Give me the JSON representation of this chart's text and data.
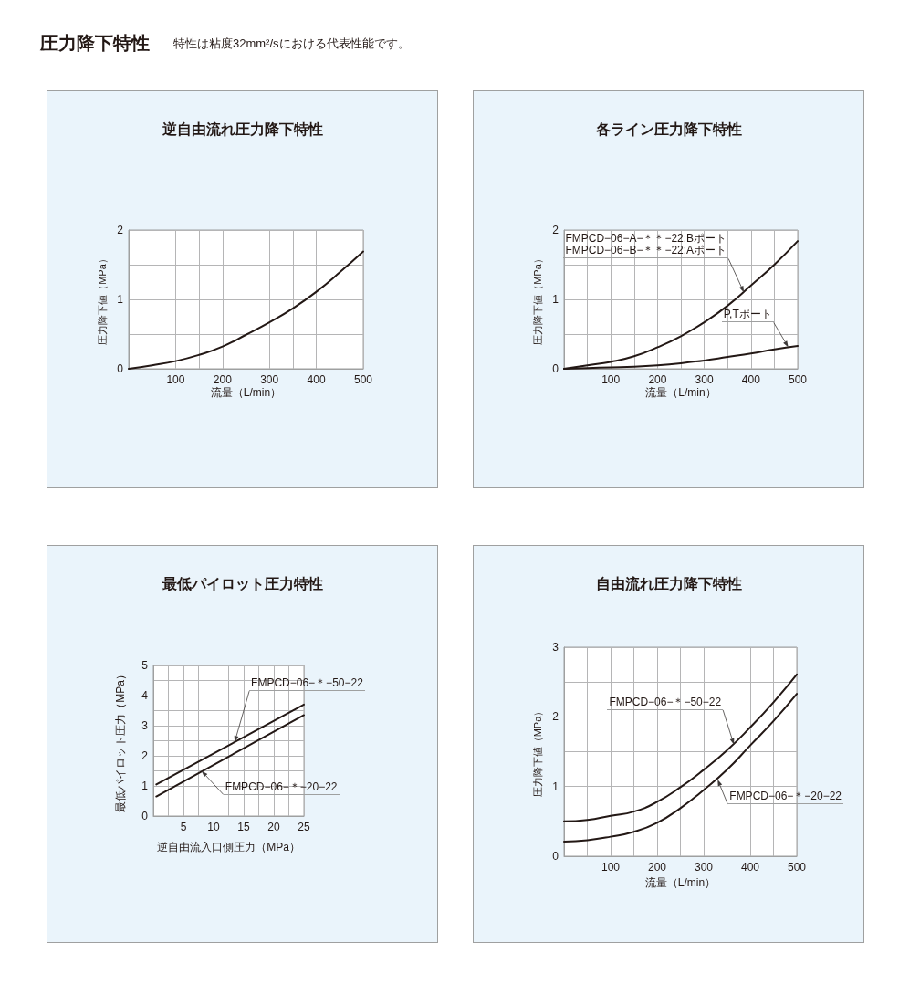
{
  "chart_data": [
    {
      "type": "other",
      "title": "圧力降下特性",
      "subtitle": "特性は粘度32mm²/sにおける代表性能です。"
    },
    {
      "type": "line",
      "title": "逆自由流れ圧力降下特性",
      "xlabel": "流量（L/min）",
      "ylabel": "圧力降下値（MPa）",
      "x": [
        0,
        50,
        100,
        150,
        200,
        250,
        300,
        350,
        400,
        450,
        500
      ],
      "series": [
        {
          "color": "#231815",
          "values": [
            0,
            0.05,
            0.11,
            0.2,
            0.32,
            0.49,
            0.67,
            0.87,
            1.11,
            1.39,
            1.69
          ]
        }
      ],
      "xlim": [
        0,
        500
      ],
      "ylim": [
        0,
        2
      ],
      "xticks": [
        {
          "value": 0,
          "label": null
        },
        {
          "value": 50,
          "label": null
        },
        100,
        {
          "value": 150,
          "label": null
        },
        200,
        {
          "value": 250,
          "label": null
        },
        300,
        {
          "value": 350,
          "label": null
        },
        400,
        {
          "value": 450,
          "label": null
        },
        500
      ],
      "yticks": [
        0,
        {
          "value": 0.5,
          "label": null
        },
        1,
        {
          "value": 1.5,
          "label": null
        },
        2
      ],
      "grid": true,
      "marker": "none"
    },
    {
      "type": "line",
      "title": "各ライン圧力降下特性",
      "xlabel": "流量（L/min）",
      "ylabel": "圧力降下値（MPa）",
      "x": [
        0,
        50,
        100,
        150,
        200,
        250,
        300,
        350,
        400,
        450,
        500
      ],
      "series": [
        {
          "color": "#231815",
          "values": [
            0,
            0.05,
            0.1,
            0.18,
            0.31,
            0.47,
            0.67,
            0.91,
            1.2,
            1.5,
            1.84
          ]
        },
        {
          "color": "#231815",
          "values": [
            0,
            0.01,
            0.02,
            0.03,
            0.05,
            0.08,
            0.12,
            0.17,
            0.22,
            0.28,
            0.33
          ]
        }
      ],
      "xlim": [
        0,
        500
      ],
      "ylim": [
        0,
        2
      ],
      "xticks": [
        {
          "value": 0,
          "label": null
        },
        {
          "value": 50,
          "label": null
        },
        100,
        {
          "value": 150,
          "label": null
        },
        200,
        {
          "value": 250,
          "label": null
        },
        300,
        {
          "value": 350,
          "label": null
        },
        400,
        {
          "value": 450,
          "label": null
        },
        500
      ],
      "yticks": [
        0,
        {
          "value": 0.5,
          "label": null
        },
        1,
        {
          "value": 1.5,
          "label": null
        },
        2
      ],
      "grid": true,
      "marker": "none",
      "annotations": [
        {
          "text": "FMPCD−06−A−＊＊−22:Bポート\nFMPCD−06−B−＊＊−22:Aポート",
          "x": 385,
          "y": 1.1
        },
        {
          "text": "P,Tポート",
          "x": 480,
          "y": 0.31
        }
      ]
    },
    {
      "type": "line",
      "title": "最低パイロット圧力特性",
      "xlabel": "逆自由流入口側圧力（MPa）",
      "ylabel": "最低パイロット圧力（MPa）",
      "x": [
        0.5,
        25
      ],
      "series": [
        {
          "color": "#231815",
          "values": [
            1.05,
            3.7
          ]
        },
        {
          "color": "#231815",
          "values": [
            0.65,
            3.35
          ]
        }
      ],
      "xlim": [
        0,
        25
      ],
      "ylim": [
        0,
        5
      ],
      "xticks": [
        {
          "value": 0,
          "label": null
        },
        {
          "value": 2.5,
          "label": null
        },
        5,
        {
          "value": 7.5,
          "label": null
        },
        10,
        {
          "value": 12.5,
          "label": null
        },
        15,
        {
          "value": 17.5,
          "label": null
        },
        20,
        {
          "value": 22.5,
          "label": null
        },
        25
      ],
      "yticks": [
        0,
        {
          "value": 0.5,
          "label": null
        },
        1,
        {
          "value": 1.5,
          "label": null
        },
        2,
        {
          "value": 2.5,
          "label": null
        },
        3,
        {
          "value": 3.5,
          "label": null
        },
        4,
        {
          "value": 4.5,
          "label": null
        },
        5
      ],
      "grid": true,
      "marker": "none",
      "annotations": [
        {
          "text": "FMPCD−06−＊−50−22",
          "x": 13.5,
          "y": 2.45
        },
        {
          "text": "FMPCD−06−＊−20−22",
          "x": 8,
          "y": 1.5
        }
      ]
    },
    {
      "type": "line",
      "title": "自由流れ圧力降下特性",
      "xlabel": "流量（L/min）",
      "ylabel": "圧力降下値（MPa）",
      "x": [
        0,
        50,
        100,
        150,
        200,
        250,
        300,
        350,
        400,
        450,
        500
      ],
      "series": [
        {
          "color": "#231815",
          "values": [
            0.5,
            0.52,
            0.58,
            0.64,
            0.78,
            0.99,
            1.24,
            1.52,
            1.85,
            2.21,
            2.61
          ]
        },
        {
          "color": "#231815",
          "values": [
            0.21,
            0.23,
            0.28,
            0.35,
            0.48,
            0.69,
            0.95,
            1.24,
            1.59,
            1.94,
            2.33
          ]
        }
      ],
      "xlim": [
        0,
        500
      ],
      "ylim": [
        0,
        3
      ],
      "xticks": [
        {
          "value": 0,
          "label": null
        },
        {
          "value": 50,
          "label": null
        },
        100,
        {
          "value": 150,
          "label": null
        },
        200,
        {
          "value": 250,
          "label": null
        },
        300,
        {
          "value": 350,
          "label": null
        },
        400,
        {
          "value": 450,
          "label": null
        },
        500
      ],
      "yticks": [
        0,
        {
          "value": 0.5,
          "label": null
        },
        1,
        {
          "value": 1.5,
          "label": null
        },
        2,
        {
          "value": 2.5,
          "label": null
        },
        3
      ],
      "grid": true,
      "marker": "none",
      "annotations": [
        {
          "text": "FMPCD−06−＊−50−22",
          "x": 365,
          "y": 1.6
        },
        {
          "text": "FMPCD−06−＊−20−22",
          "x": 330,
          "y": 1.1
        }
      ]
    }
  ]
}
